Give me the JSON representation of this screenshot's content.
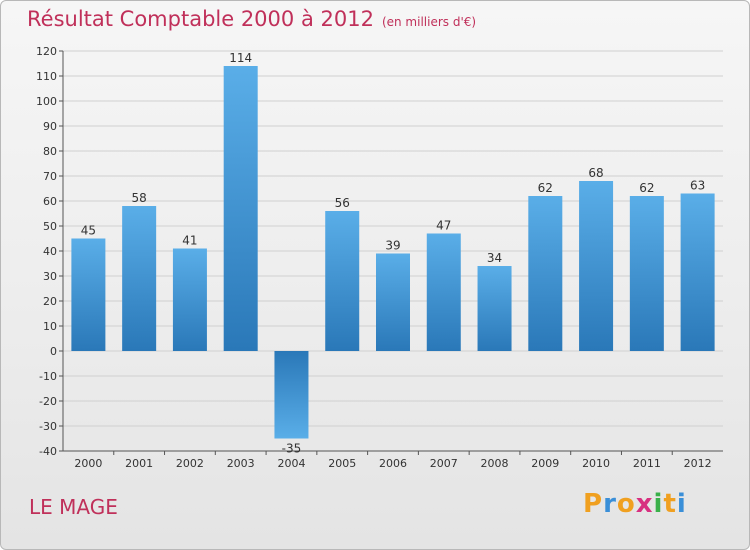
{
  "title": "Résultat Comptable 2000 à 2012",
  "subtitle": "(en milliers d'€)",
  "commune": "LE MAGE",
  "logo": {
    "text": "Proxiti",
    "letters": [
      {
        "ch": "P",
        "color": "#f0a020"
      },
      {
        "ch": "r",
        "color": "#3a8fd8"
      },
      {
        "ch": "o",
        "color": "#f0a020"
      },
      {
        "ch": "x",
        "color": "#d83080"
      },
      {
        "ch": "i",
        "color": "#3ab04a"
      },
      {
        "ch": "t",
        "color": "#f0a020"
      },
      {
        "ch": "i",
        "color": "#3a8fd8"
      }
    ]
  },
  "colors": {
    "title": "#c0305a",
    "bar_light": "#5aaee8",
    "bar_dark": "#2a78b8",
    "grid": "#d0d0d0",
    "axis": "#555555"
  },
  "chart_data": {
    "type": "bar",
    "title": "Résultat Comptable 2000 à 2012",
    "subtitle": "(en milliers d'€)",
    "xlabel": "",
    "ylabel": "",
    "categories": [
      "2000",
      "2001",
      "2002",
      "2003",
      "2004",
      "2005",
      "2006",
      "2007",
      "2008",
      "2009",
      "2010",
      "2011",
      "2012"
    ],
    "values": [
      45,
      58,
      41,
      114,
      -35,
      56,
      39,
      47,
      34,
      62,
      68,
      62,
      63
    ],
    "ylim": [
      -40,
      120
    ],
    "yticks": [
      120,
      110,
      100,
      90,
      80,
      70,
      60,
      50,
      40,
      30,
      20,
      10,
      0,
      -10,
      -20,
      -30,
      -40
    ],
    "grid": true
  }
}
